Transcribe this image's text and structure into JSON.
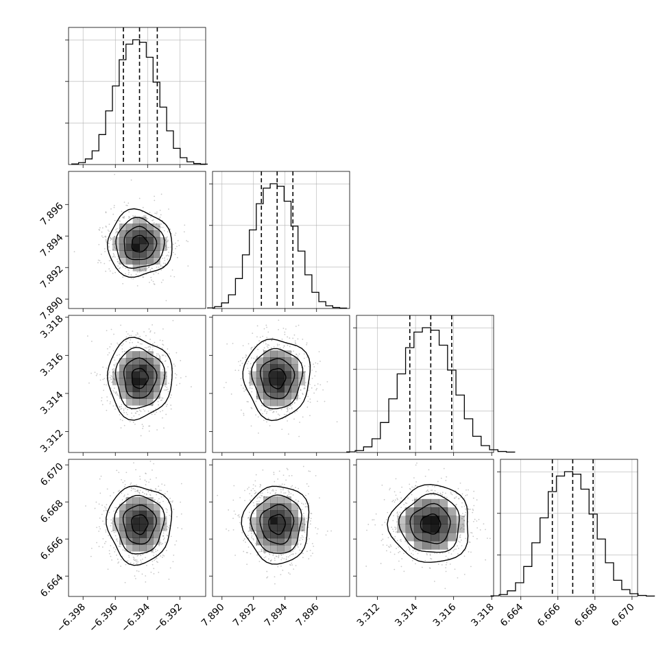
{
  "chart_data": {
    "type": "corner",
    "parameters": [
      {
        "index": 0,
        "center": -6.3945,
        "sigma": 0.001,
        "range": [
          -6.3989,
          -6.3904
        ],
        "ticks": [
          -6.398,
          -6.396,
          -6.394,
          -6.392
        ],
        "tick_labels": [
          "−6.398",
          "−6.396",
          "−6.394",
          "−6.392"
        ],
        "quantiles": [
          -6.3955,
          -6.3945,
          -6.3934
        ]
      },
      {
        "index": 1,
        "center": 7.8935,
        "sigma": 0.00105,
        "range": [
          7.8894,
          7.8981
        ],
        "ticks": [
          7.89,
          7.892,
          7.894,
          7.896
        ],
        "tick_labels": [
          "7.890",
          "7.892",
          "7.894",
          "7.896"
        ],
        "quantiles": [
          7.8925,
          7.8935,
          7.8945
        ]
      },
      {
        "index": 2,
        "center": 3.3148,
        "sigma": 0.00105,
        "range": [
          3.3109,
          3.3181
        ],
        "ticks": [
          3.312,
          3.314,
          3.316,
          3.318
        ],
        "tick_labels": [
          "3.312",
          "3.314",
          "3.316",
          "3.318"
        ],
        "quantiles": [
          3.3137,
          3.3148,
          3.3159
        ]
      },
      {
        "index": 3,
        "center": 6.6668,
        "sigma": 0.00105,
        "range": [
          6.6629,
          6.6703
        ],
        "ticks": [
          6.664,
          6.666,
          6.668,
          6.67
        ],
        "tick_labels": [
          "6.664",
          "6.666",
          "6.668",
          "6.670"
        ],
        "quantiles": [
          6.6657,
          6.6668,
          6.6679
        ]
      }
    ],
    "histogram": {
      "bins": 20,
      "relative_counts": [
        0.005,
        0.015,
        0.045,
        0.11,
        0.24,
        0.43,
        0.63,
        0.84,
        0.965,
        1.0,
        0.98,
        0.86,
        0.66,
        0.46,
        0.27,
        0.13,
        0.055,
        0.022,
        0.008,
        0.003
      ]
    },
    "contour_levels": [
      "0.5 sigma",
      "1 sigma",
      "1.5 sigma",
      "2 sigma"
    ],
    "grid": true,
    "colors": {
      "line": "#000000",
      "grid": "#b0b0b0",
      "scatter": "#9a9a9a",
      "density": "#000000"
    }
  }
}
